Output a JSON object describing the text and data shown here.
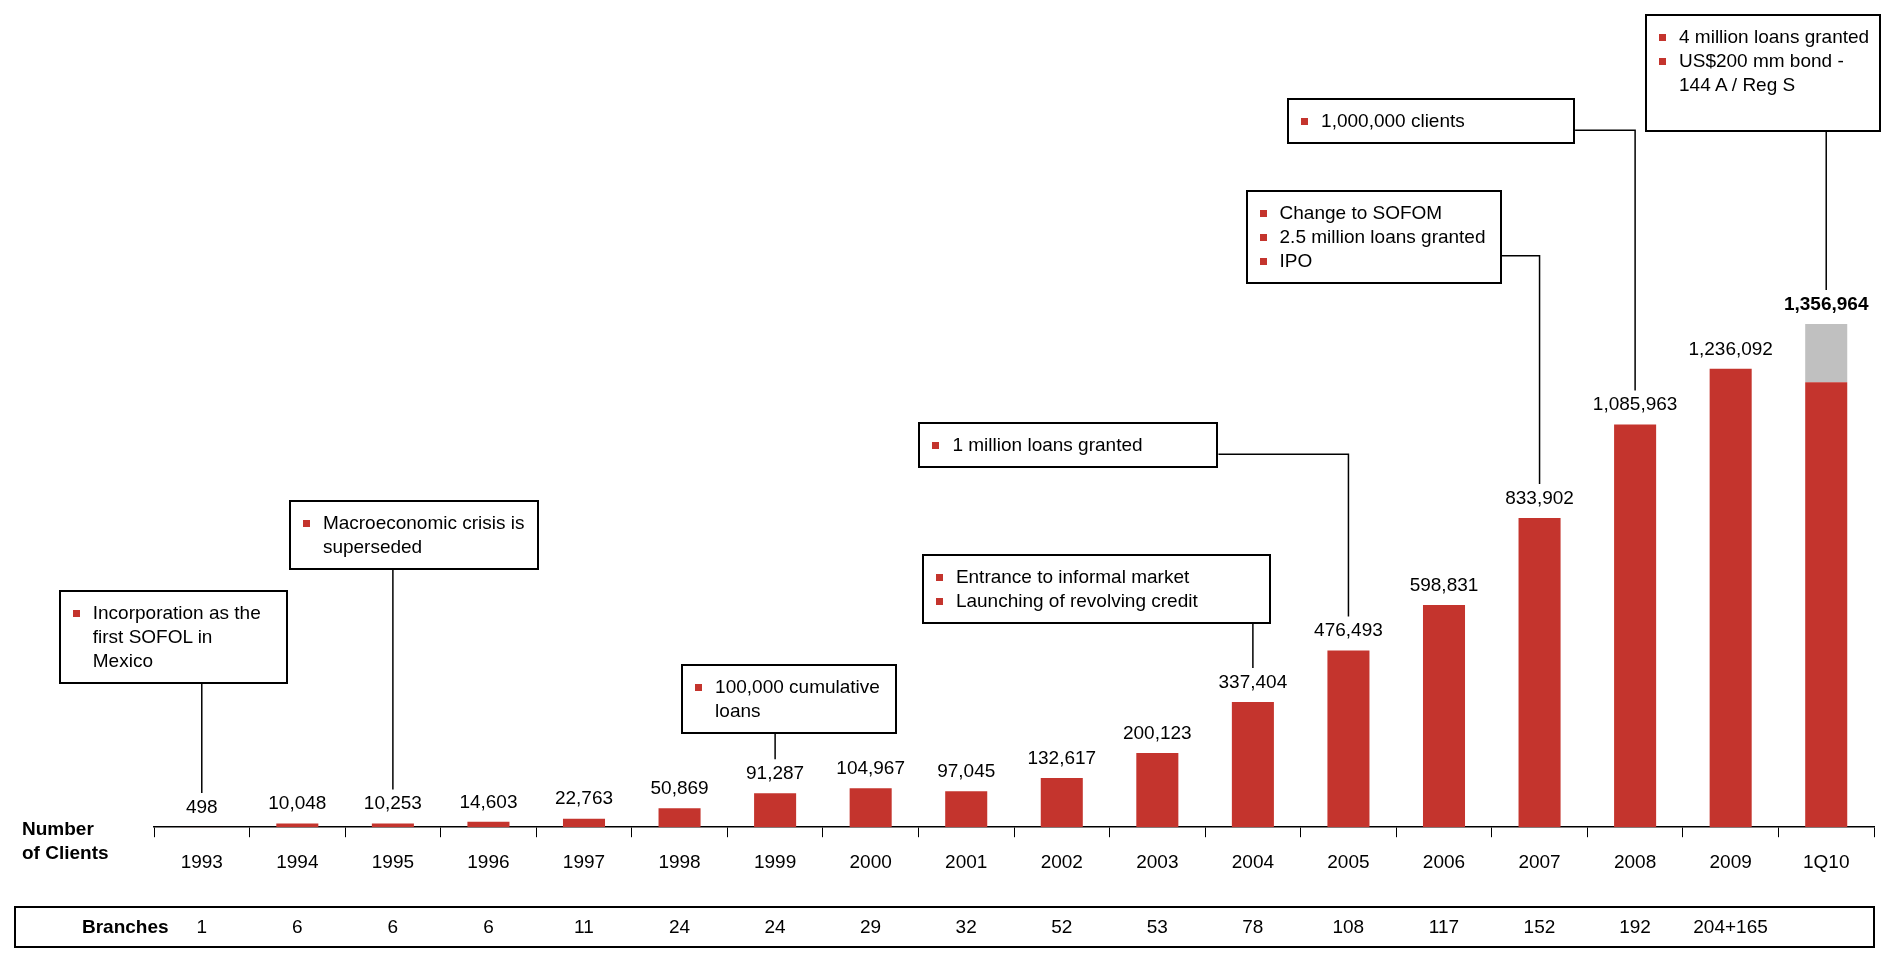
{
  "chart_data": [
    {
      "type": "bar",
      "ylabel": "Number of Clients",
      "stacked": true,
      "categories": [
        "1993",
        "1994",
        "1995",
        "1996",
        "1997",
        "1998",
        "1999",
        "2000",
        "2001",
        "2002",
        "2003",
        "2004",
        "2005",
        "2006",
        "2007",
        "2008",
        "2009",
        "1Q10"
      ],
      "series": [
        {
          "color": "#c4342d",
          "values": [
            498,
            10048,
            10253,
            14603,
            22763,
            50869,
            91287,
            104967,
            97045,
            132617,
            200123,
            337404,
            476493,
            598831,
            833902,
            1085963,
            1236092,
            1200000
          ],
          "value_labels": [
            "498",
            "10,048",
            "10,253",
            "14,603",
            "22,763",
            "50,869",
            "91,287",
            "104,967",
            "97,045",
            "132,617",
            "200,123",
            "337,404",
            "476,493",
            "598,831",
            "833,902",
            "1,085,963",
            "1,236,092",
            null
          ]
        },
        {
          "color": "#c0c0c0",
          "values": [
            null,
            null,
            null,
            null,
            null,
            null,
            null,
            null,
            null,
            null,
            null,
            null,
            null,
            null,
            null,
            null,
            null,
            156964
          ]
        }
      ],
      "totals": [
        null,
        null,
        null,
        null,
        null,
        null,
        null,
        null,
        null,
        null,
        null,
        null,
        null,
        null,
        null,
        null,
        null,
        "1,356,964"
      ],
      "annotations": [
        "Incorporation as the first SOFOL in Mexico",
        "Macroeconomic crisis is superseded",
        "100,000 cumulative loans",
        "Entrance to  informal market\nLaunching of revolving credit",
        "1 million loans granted",
        "Change to SOFOM\n2.5 million loans granted\nIPO",
        "1,000,000 clients",
        "4 million loans granted\nUS$200 mm bond - 144 A / Reg S"
      ]
    },
    {
      "type": "other",
      "title": "Branches",
      "value_labels": [
        "1",
        "6",
        "6",
        "6",
        "11",
        "24",
        "24",
        "29",
        "32",
        "52",
        "53",
        "78",
        "108",
        "117",
        "152",
        "192",
        "204+165"
      ]
    }
  ]
}
